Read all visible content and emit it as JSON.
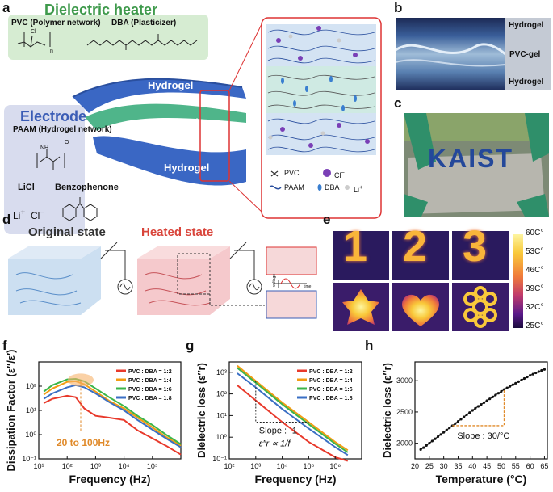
{
  "panels": {
    "a": "a",
    "b": "b",
    "c": "c",
    "d": "d",
    "e": "e",
    "f": "f",
    "g": "g",
    "h": "h"
  },
  "panel_a": {
    "dielectric_heater": "Dielectric heater",
    "pvc": "PVC (Polymer network)",
    "dba": "DBA (Plasticizer)",
    "pvc_cl": "Cl",
    "pvc_n": "n",
    "electrode": "Electrode",
    "paam": "PAAM (Hydrogel network)",
    "paam_nh2": "NH",
    "paam_o": "O",
    "licl": "LiCl",
    "benzophenone": "Benzophenone",
    "li": "Li",
    "cl": "Cl",
    "hydrogel_top": "Hydrogel",
    "pvc_gel": "PVC-gel",
    "hydrogel_bottom": "Hydrogel",
    "legend_pvc": "PVC",
    "legend_cl": "Cl",
    "legend_paam": "PAAM",
    "legend_dba": "DBA",
    "legend_li": "Li"
  },
  "panel_b": {
    "hydrogel_top": "Hydrogel",
    "pvc_gel": "PVC-gel",
    "hydrogel_bottom": "Hydrogel"
  },
  "panel_c": {
    "sign_text": "KAIST"
  },
  "panel_d": {
    "original": "Original state",
    "heated": "Heated state",
    "voltage": "voltage",
    "time": "time"
  },
  "panel_e": {
    "digits": [
      "1",
      "2",
      "3"
    ],
    "colorbar_ticks": [
      "60C°",
      "53C°",
      "46C°",
      "39C°",
      "32C°",
      "25C°"
    ],
    "colors": [
      "#1a0b3d",
      "#5a1a8a",
      "#c03a6b",
      "#f07b3a",
      "#f9c93a",
      "#fdf5a0"
    ]
  },
  "chart_data": [
    {
      "id": "f",
      "type": "line",
      "ylabel": "Dissipation Factor",
      "ylabel_symbol": "ε″/ε′",
      "xlabel": "Frequency (Hz)",
      "xscale": "log",
      "yscale": "log",
      "xlim": [
        1,
        100000
      ],
      "ylim": [
        0.1,
        1000
      ],
      "xticks": [
        "10¹",
        "10²",
        "10³",
        "10⁴",
        "10⁵"
      ],
      "yticks": [
        "10⁻¹",
        "10⁰",
        "10¹",
        "10²"
      ],
      "annotation": "20 to 100Hz",
      "legend_position": "top-right",
      "series": [
        {
          "name": "PVC : DBA = 1:2",
          "color": "#e8392b",
          "x": [
            1.5,
            3,
            10,
            20,
            40,
            100,
            300,
            1000,
            3000,
            10000,
            30000,
            100000
          ],
          "y": [
            20,
            30,
            40,
            35,
            12,
            6,
            5,
            4,
            1.5,
            0.7,
            0.35,
            0.15
          ]
        },
        {
          "name": "PVC : DBA = 1:4",
          "color": "#f39c12",
          "x": [
            1.5,
            3,
            10,
            20,
            40,
            100,
            300,
            1000,
            3000,
            10000,
            30000,
            100000
          ],
          "y": [
            45,
            80,
            150,
            160,
            120,
            60,
            25,
            12,
            5,
            2,
            0.8,
            0.35
          ]
        },
        {
          "name": "PVC : DBA = 1:6",
          "color": "#3cb54a",
          "x": [
            1.5,
            3,
            10,
            20,
            40,
            100,
            300,
            1000,
            3000,
            10000,
            30000,
            100000
          ],
          "y": [
            60,
            110,
            190,
            200,
            160,
            80,
            35,
            15,
            6,
            2.5,
            1,
            0.4
          ]
        },
        {
          "name": "PVC : DBA = 1:8",
          "color": "#3a6fc4",
          "x": [
            1.5,
            3,
            10,
            20,
            40,
            100,
            300,
            1000,
            3000,
            10000,
            30000,
            100000
          ],
          "y": [
            30,
            50,
            90,
            110,
            90,
            50,
            22,
            10,
            4,
            1.6,
            0.7,
            0.3
          ]
        }
      ]
    },
    {
      "id": "g",
      "type": "line",
      "ylabel": "Dielectric loss",
      "ylabel_symbol": "ε″r",
      "xlabel": "Frequency (Hz)",
      "xscale": "log",
      "yscale": "log",
      "xlim": [
        10,
        1000000
      ],
      "ylim": [
        0.1,
        3000
      ],
      "xticks": [
        "10²",
        "10³",
        "10⁴",
        "10⁵",
        "10⁶"
      ],
      "yticks": [
        "10⁻¹",
        "10⁰",
        "10¹",
        "10²",
        "10³"
      ],
      "annotation_slope": "Slope : -1",
      "annotation_rel": "ε″r ∝ 1/f",
      "legend_position": "top-right",
      "series": [
        {
          "name": "PVC : DBA = 1:2",
          "color": "#e8392b",
          "x": [
            20,
            100,
            1000,
            10000,
            100000,
            300000
          ],
          "y": [
            250,
            50,
            5,
            0.6,
            0.12,
            0.08
          ]
        },
        {
          "name": "PVC : DBA = 1:4",
          "color": "#f39c12",
          "x": [
            20,
            100,
            1000,
            10000,
            100000,
            300000
          ],
          "y": [
            2000,
            400,
            40,
            5,
            0.6,
            0.25
          ]
        },
        {
          "name": "PVC : DBA = 1:6",
          "color": "#3cb54a",
          "x": [
            20,
            100,
            1000,
            10000,
            100000,
            300000
          ],
          "y": [
            1600,
            330,
            33,
            4,
            0.5,
            0.2
          ]
        },
        {
          "name": "PVC : DBA = 1:8",
          "color": "#3a6fc4",
          "x": [
            20,
            100,
            1000,
            10000,
            100000,
            300000
          ],
          "y": [
            900,
            200,
            20,
            2.5,
            0.35,
            0.15
          ]
        }
      ]
    },
    {
      "id": "h",
      "type": "line",
      "ylabel": "Dielectric loss",
      "ylabel_symbol": "ε″r",
      "xlabel": "Temperature (°C)",
      "xlim": [
        20,
        66
      ],
      "ylim": [
        1750,
        3300
      ],
      "xticks": [
        "20",
        "25",
        "30",
        "35",
        "40",
        "45",
        "50",
        "55",
        "60",
        "65"
      ],
      "yticks": [
        "2000",
        "2500",
        "3000"
      ],
      "annotation": "Slope : 30/°C",
      "series": [
        {
          "name": "",
          "color": "#111111",
          "x": [
            22,
            23,
            24,
            25,
            26,
            27,
            28,
            29,
            30,
            31,
            32,
            33,
            34,
            35,
            36,
            37,
            38,
            39,
            40,
            41,
            42,
            43,
            44,
            45,
            46,
            47,
            48,
            49,
            50,
            51,
            52,
            53,
            54,
            55,
            56,
            57,
            58,
            59,
            60,
            61,
            62,
            63,
            64,
            65
          ],
          "y": [
            1900,
            1930,
            1965,
            2000,
            2035,
            2070,
            2105,
            2140,
            2175,
            2210,
            2245,
            2280,
            2315,
            2350,
            2385,
            2420,
            2455,
            2490,
            2525,
            2560,
            2590,
            2620,
            2650,
            2680,
            2710,
            2740,
            2770,
            2800,
            2830,
            2860,
            2885,
            2910,
            2935,
            2960,
            2985,
            3010,
            3035,
            3060,
            3085,
            3105,
            3125,
            3145,
            3165,
            3180
          ]
        }
      ]
    }
  ]
}
